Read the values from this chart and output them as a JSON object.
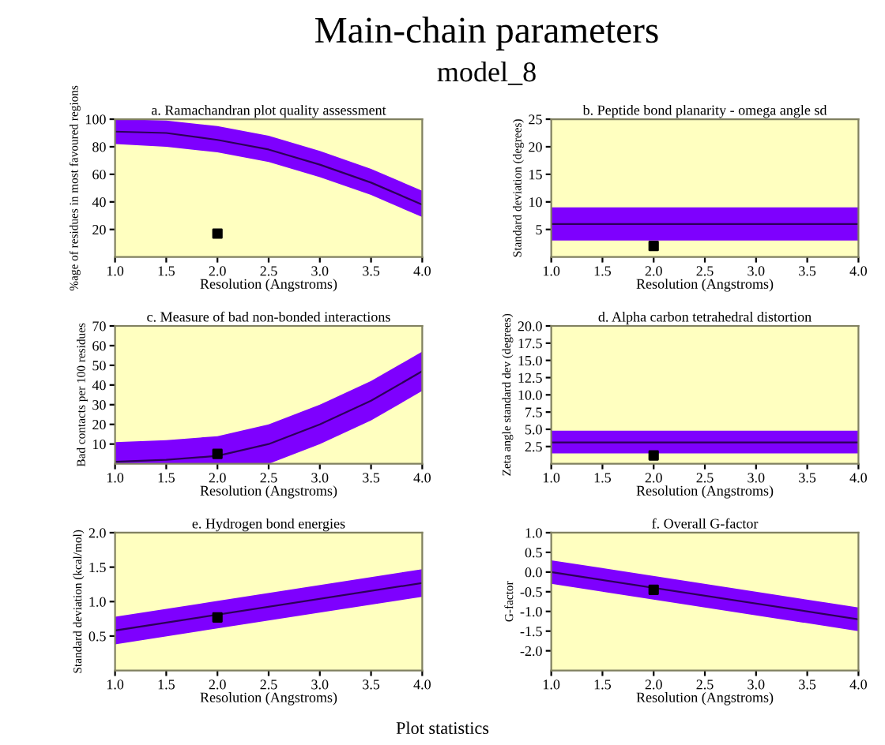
{
  "chart_data": [
    {
      "type": "line",
      "title": "Main-chain parameters",
      "subtitle": "model_8",
      "xlabel": "Resolution (Angstroms)",
      "ylabel": "%age of residues in most favoured regions",
      "annotations": [
        "a. Ramachandran plot quality assessment"
      ],
      "xlim": [
        1.0,
        4.0
      ],
      "xticks": [
        {
          "value": 1.0,
          "label": "1.0"
        },
        {
          "value": 1.5,
          "label": "1.5"
        },
        {
          "value": 2.0,
          "label": "2.0"
        },
        {
          "value": 2.5,
          "label": "2.5"
        },
        {
          "value": 3.0,
          "label": "3.0"
        },
        {
          "value": 3.5,
          "label": "3.5"
        },
        {
          "value": 4.0,
          "label": "4.0"
        }
      ],
      "ylim": [
        0,
        100
      ],
      "yticks": [
        20,
        40,
        60,
        80,
        100
      ],
      "grid": false,
      "legend": false,
      "series": [
        {
          "color": "#2c0059",
          "x": [
            1.0,
            1.5,
            2.0,
            2.5,
            3.0,
            3.5,
            4.0
          ],
          "values": [
            91,
            90,
            85,
            78,
            67,
            54,
            38
          ],
          "lower": [
            82,
            80,
            76,
            69,
            58,
            45,
            29
          ],
          "upper": [
            100,
            99,
            95,
            88,
            77,
            64,
            48
          ]
        },
        {
          "type": "scatter",
          "color": "#000000",
          "marker": "square",
          "x": [
            2.0
          ],
          "values": [
            17
          ]
        }
      ]
    },
    {
      "type": "line",
      "xlabel": "Resolution (Angstroms)",
      "ylabel": "Standard deviation (degrees)",
      "annotations": [
        "b. Peptide bond planarity - omega angle sd"
      ],
      "xlim": [
        1.0,
        4.0
      ],
      "xticks": [
        {
          "value": 1.0,
          "label": "1.0"
        },
        {
          "value": 1.5,
          "label": "1.5"
        },
        {
          "value": 2.0,
          "label": "2.0"
        },
        {
          "value": 2.5,
          "label": "2.5"
        },
        {
          "value": 3.0,
          "label": "3.0"
        },
        {
          "value": 3.5,
          "label": "3.5"
        },
        {
          "value": 4.0,
          "label": "4.0"
        }
      ],
      "ylim": [
        0,
        25
      ],
      "yticks": [
        5,
        10,
        15,
        20,
        25
      ],
      "grid": false,
      "legend": false,
      "series": [
        {
          "color": "#2c0059",
          "x": [
            1.0,
            4.0
          ],
          "values": [
            6,
            6
          ],
          "lower": [
            3,
            3
          ],
          "upper": [
            9,
            9
          ]
        },
        {
          "type": "scatter",
          "color": "#000000",
          "marker": "square",
          "x": [
            2.0
          ],
          "values": [
            2
          ]
        }
      ]
    },
    {
      "type": "line",
      "xlabel": "Resolution (Angstroms)",
      "ylabel": "Bad contacts per 100 residues",
      "annotations": [
        "c. Measure of bad non-bonded interactions"
      ],
      "xlim": [
        1.0,
        4.0
      ],
      "xticks": [
        {
          "value": 1.0,
          "label": "1.0"
        },
        {
          "value": 1.5,
          "label": "1.5"
        },
        {
          "value": 2.0,
          "label": "2.0"
        },
        {
          "value": 2.5,
          "label": "2.5"
        },
        {
          "value": 3.0,
          "label": "3.0"
        },
        {
          "value": 3.5,
          "label": "3.5"
        },
        {
          "value": 4.0,
          "label": "4.0"
        }
      ],
      "ylim": [
        0,
        70
      ],
      "yticks": [
        10,
        20,
        30,
        40,
        50,
        60,
        70
      ],
      "grid": false,
      "legend": false,
      "series": [
        {
          "color": "#2c0059",
          "x": [
            1.0,
            1.5,
            2.0,
            2.5,
            3.0,
            3.5,
            4.0
          ],
          "values": [
            1,
            2,
            4,
            10,
            20,
            32,
            47
          ],
          "lower": [
            0,
            0,
            0,
            0,
            10,
            22,
            37
          ],
          "upper": [
            11,
            12,
            14,
            20,
            30,
            42,
            57
          ]
        },
        {
          "type": "scatter",
          "color": "#000000",
          "marker": "square",
          "x": [
            2.0
          ],
          "values": [
            5
          ]
        }
      ]
    },
    {
      "type": "line",
      "xlabel": "Resolution (Angstroms)",
      "ylabel": "Zeta angle standard dev (degrees)",
      "annotations": [
        "d. Alpha carbon tetrahedral distortion"
      ],
      "xlim": [
        1.0,
        4.0
      ],
      "xticks": [
        {
          "value": 1.0,
          "label": "1.0"
        },
        {
          "value": 1.5,
          "label": "1.5"
        },
        {
          "value": 2.0,
          "label": "2.0"
        },
        {
          "value": 2.5,
          "label": "2.5"
        },
        {
          "value": 3.0,
          "label": "3.0"
        },
        {
          "value": 3.5,
          "label": "3.5"
        },
        {
          "value": 4.0,
          "label": "4.0"
        }
      ],
      "ylim": [
        0,
        20
      ],
      "yticks": [
        2.5,
        {
          "value": 5,
          "label": "5.0"
        },
        7.5,
        {
          "value": 10,
          "label": "10.0"
        },
        12.5,
        {
          "value": 15,
          "label": "15.0"
        },
        17.5,
        {
          "value": 20,
          "label": "20.0"
        }
      ],
      "grid": false,
      "legend": false,
      "series": [
        {
          "color": "#2c0059",
          "x": [
            1.0,
            4.0
          ],
          "values": [
            3.1,
            3.1
          ],
          "lower": [
            1.5,
            1.5
          ],
          "upper": [
            4.8,
            4.8
          ]
        },
        {
          "type": "scatter",
          "color": "#000000",
          "marker": "square",
          "x": [
            2.0
          ],
          "values": [
            1.2
          ]
        }
      ]
    },
    {
      "type": "line",
      "xlabel": "Resolution (Angstroms)",
      "ylabel": "Standard deviation (kcal/mol)",
      "annotations": [
        "e. Hydrogen bond energies"
      ],
      "xlim": [
        1.0,
        4.0
      ],
      "xticks": [
        {
          "value": 1.0,
          "label": "1.0"
        },
        {
          "value": 1.5,
          "label": "1.5"
        },
        {
          "value": 2.0,
          "label": "2.0"
        },
        {
          "value": 2.5,
          "label": "2.5"
        },
        {
          "value": 3.0,
          "label": "3.0"
        },
        {
          "value": 3.5,
          "label": "3.5"
        },
        {
          "value": 4.0,
          "label": "4.0"
        }
      ],
      "ylim": [
        0,
        2.0
      ],
      "yticks": [
        0.5,
        {
          "value": 1.0,
          "label": "1.0"
        },
        1.5,
        {
          "value": 2.0,
          "label": "2.0"
        }
      ],
      "grid": false,
      "legend": false,
      "series": [
        {
          "color": "#2c0059",
          "x": [
            1.0,
            4.0
          ],
          "values": [
            0.58,
            1.27
          ],
          "lower": [
            0.38,
            1.07
          ],
          "upper": [
            0.78,
            1.47
          ]
        },
        {
          "type": "scatter",
          "color": "#000000",
          "marker": "square",
          "x": [
            2.0
          ],
          "values": [
            0.77
          ]
        }
      ]
    },
    {
      "type": "line",
      "xlabel": "Resolution (Angstroms)",
      "ylabel": "G-factor",
      "annotations": [
        "f. Overall G-factor",
        "Plot statistics"
      ],
      "xlim": [
        1.0,
        4.0
      ],
      "xticks": [
        {
          "value": 1.0,
          "label": "1.0"
        },
        {
          "value": 1.5,
          "label": "1.5"
        },
        {
          "value": 2.0,
          "label": "2.0"
        },
        {
          "value": 2.5,
          "label": "2.5"
        },
        {
          "value": 3.0,
          "label": "3.0"
        },
        {
          "value": 3.5,
          "label": "3.5"
        },
        {
          "value": 4.0,
          "label": "4.0"
        }
      ],
      "ylim": [
        -2.5,
        1.0
      ],
      "yticks": [
        {
          "value": -2.0,
          "label": "-2.0"
        },
        -1.5,
        {
          "value": -1.0,
          "label": "-1.0"
        },
        -0.5,
        {
          "value": 0.0,
          "label": "0.0"
        },
        0.5,
        {
          "value": 1.0,
          "label": "1.0"
        }
      ],
      "grid": false,
      "legend": false,
      "series": [
        {
          "color": "#2c0059",
          "x": [
            1.0,
            4.0
          ],
          "values": [
            0.0,
            -1.2
          ],
          "lower": [
            -0.3,
            -1.5
          ],
          "upper": [
            0.3,
            -0.9
          ]
        },
        {
          "type": "scatter",
          "color": "#000000",
          "marker": "square",
          "x": [
            2.0
          ],
          "values": [
            -0.45
          ]
        }
      ]
    }
  ]
}
